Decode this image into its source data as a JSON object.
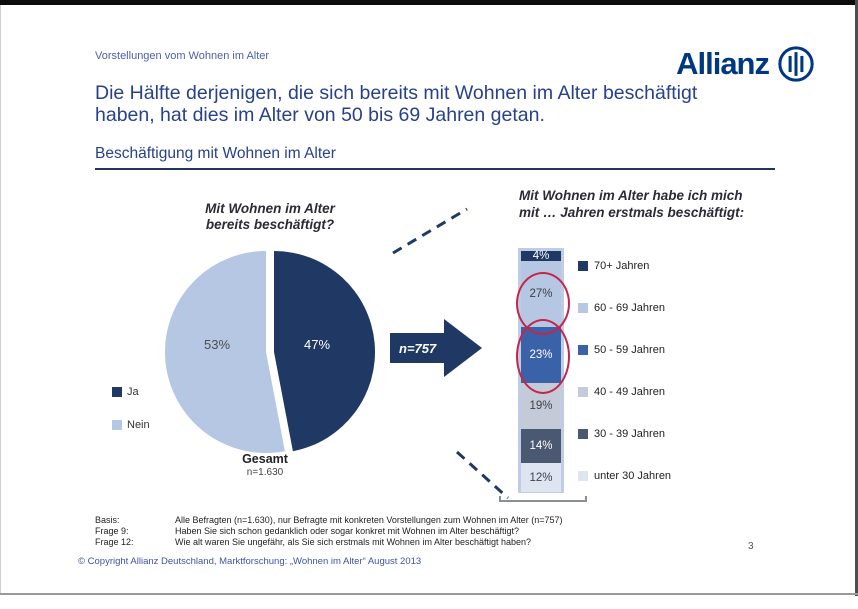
{
  "header": {
    "kicker": "Vorstellungen vom Wohnen im Alter",
    "logo_text": "Allianz"
  },
  "title_lines": [
    "Die Hälfte derjenigen, die sich bereits mit Wohnen im Alter beschäftigt",
    "haben, hat dies im Alter von 50 bis 69 Jahren getan."
  ],
  "section_heading": "Beschäftigung mit Wohnen im Alter",
  "pie_block": {
    "question_lines": [
      "Mit Wohnen im Alter",
      "bereits beschäftigt?"
    ],
    "total_label": "Gesamt",
    "total_n": "n=1.630"
  },
  "arrow": {
    "label": "n=757",
    "color": "#1f3864"
  },
  "chart_data": [
    {
      "type": "pie",
      "title": "Mit Wohnen im Alter bereits beschäftigt?",
      "categories": [
        "Ja",
        "Nein"
      ],
      "values": [
        47,
        53
      ],
      "labels": [
        "47%",
        "53%"
      ],
      "colors": [
        "#1f3864",
        "#b5c7e3"
      ],
      "label_colors": [
        "#ffffff",
        "#4d4d4d"
      ],
      "legend_position": "left",
      "start_angle_deg": 0,
      "exploded_slice": "Ja",
      "annotation": "Gesamt n=1.630"
    },
    {
      "type": "stacked-bar",
      "title_lines": [
        "Mit Wohnen im Alter habe ich mich",
        "mit … Jahren erstmals beschäftigt:"
      ],
      "categories": [
        "70+ Jahren",
        "60 - 69 Jahren",
        "50 - 59 Jahren",
        "40 - 49 Jahren",
        "30 - 39 Jahren",
        "unter 30 Jahren"
      ],
      "values": [
        4,
        27,
        23,
        19,
        14,
        12
      ],
      "labels": [
        "4%",
        "27%",
        "23%",
        "19%",
        "14%",
        "12%"
      ],
      "colors": [
        "#1f3864",
        "#b5c7e3",
        "#3a62a8",
        "#c4cad8",
        "#4b5871",
        "#dfe4f1"
      ],
      "label_colors": [
        "#ffffff",
        "#3f3f46",
        "#ffffff",
        "#3f3f46",
        "#ffffff",
        "#3f3f46"
      ],
      "n": 757,
      "highlight": {
        "annotation": "red ellipses around 27% and 23%",
        "color": "#c42649"
      }
    }
  ],
  "footnotes": [
    {
      "label": "Basis:",
      "text": "Alle Befragten (n=1.630), nur Befragte mit konkreten Vorstellungen zum Wohnen im Alter (n=757)"
    },
    {
      "label": "Frage 9:",
      "text": "Haben Sie sich schon gedanklich oder sogar konkret mit Wohnen im Alter beschäftigt?"
    },
    {
      "label": "Frage 12:",
      "text": "Wie alt waren Sie ungefähr, als Sie sich erstmals mit Wohnen im Alter beschäftigt haben?"
    }
  ],
  "footer": {
    "copyright": "© Copyright Allianz Deutschland, Marktforschung: „Wohnen im Alter“ August 2013",
    "page_number": "3"
  }
}
